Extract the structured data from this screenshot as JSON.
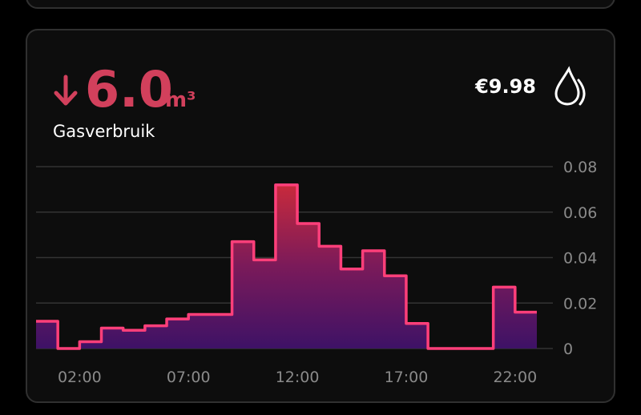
{
  "header": {
    "value": "6.0",
    "unit": "m³",
    "label": "Gasverbruik",
    "cost": "€9.98"
  },
  "chart_data": {
    "type": "line",
    "step": "post",
    "x": [
      0,
      1,
      2,
      3,
      4,
      5,
      6,
      7,
      8,
      9,
      10,
      11,
      12,
      13,
      14,
      15,
      16,
      17,
      18,
      19,
      20,
      21,
      22
    ],
    "values": [
      0.012,
      0,
      0.003,
      0.009,
      0.008,
      0.01,
      0.013,
      0.015,
      0.015,
      0.047,
      0.039,
      0.072,
      0.055,
      0.045,
      0.035,
      0.043,
      0.032,
      0.011,
      0,
      0,
      0,
      0.027,
      0.016
    ],
    "color": "#ff3f7a",
    "xlim": [
      0,
      23
    ],
    "xticks": [
      {
        "value": 2,
        "label": "02:00"
      },
      {
        "value": 7,
        "label": "07:00"
      },
      {
        "value": 12,
        "label": "12:00"
      },
      {
        "value": 17,
        "label": "17:00"
      },
      {
        "value": 22,
        "label": "22:00"
      }
    ],
    "ylim": [
      0,
      0.08
    ],
    "yticks": [
      0,
      0.02,
      0.04,
      0.06,
      0.08
    ],
    "grid": true
  }
}
